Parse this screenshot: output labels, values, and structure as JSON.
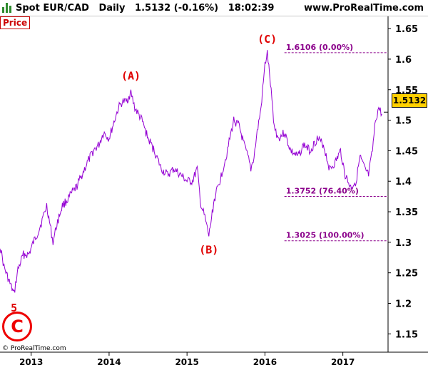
{
  "header": {
    "instrument": "Spot EUR/CAD",
    "timeframe": "Daily",
    "last": "1.5132",
    "change": "(-0.16%)",
    "time": "18:02:39",
    "site": "www.ProRealTime.com"
  },
  "panel_label": "Price",
  "current_price_label": "1.5132",
  "copyright": "© ProRealTime.com",
  "wave_circle_label": "C",
  "colors": {
    "series": "#9400d3",
    "wave_labels": "#e00000",
    "fib_lines": "#8b008b",
    "price_box": "#ffd000"
  },
  "chart_data": {
    "type": "line",
    "x_axis_labels": [
      "2013",
      "2014",
      "2015",
      "2016",
      "2017"
    ],
    "y_ticks": [
      "1.15",
      "1.2",
      "1.25",
      "1.3",
      "1.35",
      "1.4",
      "1.45",
      "1.5",
      "1.55",
      "1.6",
      "1.65"
    ],
    "ylim": [
      1.12,
      1.67
    ],
    "xlim": [
      2012.6,
      2017.58
    ],
    "series": [
      {
        "x": [
          2012.6,
          2012.65,
          2012.72,
          2012.78,
          2012.83,
          2012.9,
          2012.97,
          2013.03,
          2013.1,
          2013.15,
          2013.2,
          2013.28,
          2013.33,
          2013.4,
          2013.47,
          2013.52,
          2013.58,
          2013.65,
          2013.72,
          2013.8,
          2013.87,
          2013.93,
          2014.0,
          2014.07,
          2014.12,
          2014.17,
          2014.22,
          2014.28,
          2014.33,
          2014.42,
          2014.5,
          2014.58,
          2014.67,
          2014.75,
          2014.83,
          2014.92,
          2015.0,
          2015.07,
          2015.13,
          2015.18,
          2015.23,
          2015.28,
          2015.35,
          2015.42,
          2015.5,
          2015.55,
          2015.6,
          2015.67,
          2015.73,
          2015.78,
          2015.82,
          2015.86,
          2015.9,
          2015.95,
          2016.0,
          2016.03,
          2016.07,
          2016.12,
          2016.17,
          2016.25,
          2016.33,
          2016.42,
          2016.5,
          2016.58,
          2016.67,
          2016.75,
          2016.83,
          2016.9,
          2016.97,
          2017.03,
          2017.1,
          2017.17,
          2017.22,
          2017.28,
          2017.33,
          2017.38,
          2017.42,
          2017.46,
          2017.5
        ],
        "values": [
          1.295,
          1.26,
          1.235,
          1.215,
          1.255,
          1.28,
          1.28,
          1.3,
          1.32,
          1.34,
          1.36,
          1.3,
          1.33,
          1.36,
          1.37,
          1.38,
          1.39,
          1.41,
          1.43,
          1.45,
          1.46,
          1.48,
          1.47,
          1.5,
          1.52,
          1.53,
          1.53,
          1.545,
          1.52,
          1.5,
          1.47,
          1.45,
          1.42,
          1.41,
          1.42,
          1.41,
          1.4,
          1.4,
          1.42,
          1.36,
          1.34,
          1.31,
          1.37,
          1.4,
          1.44,
          1.47,
          1.5,
          1.49,
          1.46,
          1.44,
          1.42,
          1.44,
          1.48,
          1.52,
          1.59,
          1.61,
          1.56,
          1.49,
          1.47,
          1.48,
          1.45,
          1.44,
          1.46,
          1.45,
          1.47,
          1.46,
          1.42,
          1.43,
          1.45,
          1.41,
          1.39,
          1.4,
          1.44,
          1.42,
          1.41,
          1.45,
          1.5,
          1.52,
          1.51
        ]
      }
    ],
    "wave_labels": [
      {
        "text": "5",
        "x": 2012.78,
        "y": 1.21,
        "pos": "below"
      },
      {
        "text": "(A)",
        "x": 2014.28,
        "y": 1.555,
        "pos": "above"
      },
      {
        "text": "(B)",
        "x": 2015.28,
        "y": 1.305,
        "pos": "below"
      },
      {
        "text": "(C)",
        "x": 2016.03,
        "y": 1.615,
        "pos": "above"
      }
    ],
    "fib_levels": [
      {
        "label": "1.6106 (0.00%)",
        "value": 1.6106
      },
      {
        "label": "1.3752 (76.40%)",
        "value": 1.3752
      },
      {
        "label": "1.3025 (100.00%)",
        "value": 1.3025
      }
    ],
    "fib_x_start": 2016.25,
    "current_value": 1.5132
  }
}
